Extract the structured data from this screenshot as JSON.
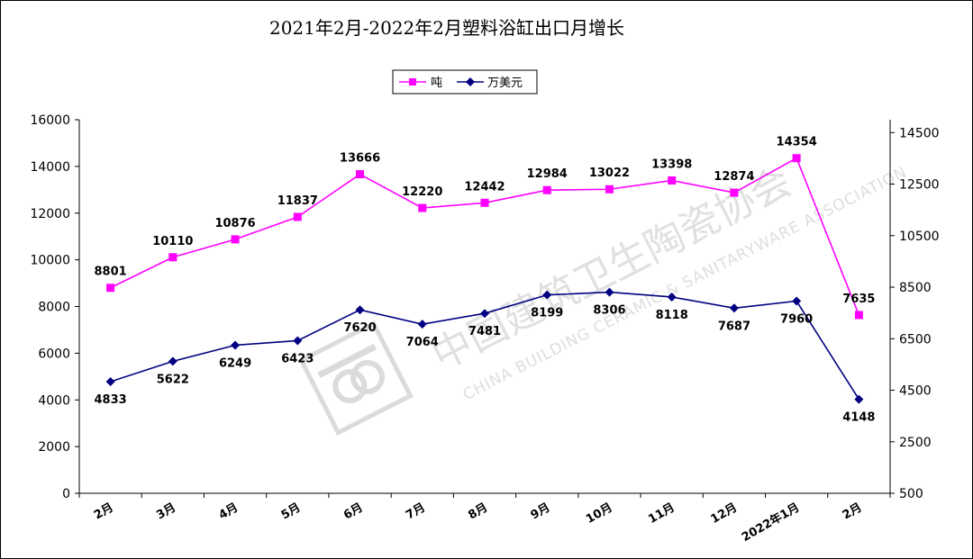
{
  "chart_data": {
    "type": "line",
    "title": "2021年2月-2022年2月塑料浴缸出口月增长",
    "categories": [
      "2月",
      "3月",
      "4月",
      "5月",
      "6月",
      "7月",
      "8月",
      "9月",
      "10月",
      "11月",
      "12月",
      "2022年1月",
      "2月"
    ],
    "series": [
      {
        "name": "吨",
        "axis": "left",
        "color": "#ff00ff",
        "marker": "square",
        "values": [
          8801,
          10110,
          10876,
          11837,
          13666,
          12220,
          12442,
          12984,
          13022,
          13398,
          12874,
          14354,
          7635
        ]
      },
      {
        "name": "万美元",
        "axis": "right",
        "color": "#000080",
        "marker": "diamond",
        "values": [
          4833,
          5622,
          6249,
          6423,
          7620,
          7064,
          7481,
          8199,
          8306,
          8118,
          7687,
          7960,
          4148
        ]
      }
    ],
    "y_left": {
      "min": 0,
      "max": 16000,
      "ticks": [
        "0",
        "2000",
        "4000",
        "6000",
        "8000",
        "10000",
        "12000",
        "14000",
        "16000"
      ]
    },
    "y_right": {
      "min": 500,
      "max": 15000,
      "ticks": [
        "500",
        "2500",
        "4500",
        "6500",
        "8500",
        "10500",
        "12500",
        "14500"
      ]
    },
    "legend_position": "top-center",
    "grid": false
  },
  "watermark": {
    "cn": "中国建筑卫生陶瓷协会",
    "en": "CHINA BUILDING CERAMIC & SANITARYWARE ASSOCIATION"
  }
}
